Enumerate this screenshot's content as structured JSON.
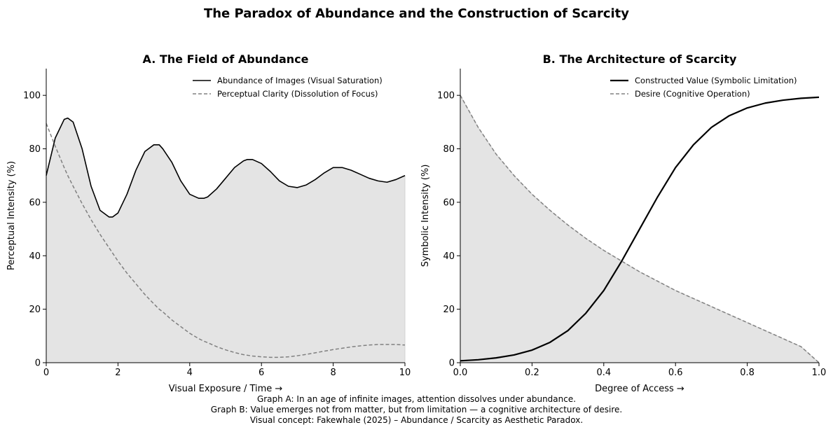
{
  "figure_title": "The Paradox of Abundance and the Construction of Scarcity",
  "caption_lines": [
    "Graph A: In an age of infinite images, attention dissolves under abundance.",
    "Graph B: Value emerges not from matter, but from limitation — a cognitive architecture of desire.",
    "Visual concept: Fakewhale (2025) – Abundance / Scarcity as Aesthetic Paradox."
  ],
  "colors": {
    "primary_line": "#000000",
    "secondary_line": "#808080",
    "fill": "#e4e4e4",
    "axis": "#000000"
  },
  "chart_data": [
    {
      "type": "line",
      "title": "A. The Field of Abundance",
      "xlabel": "Visual Exposure / Time →",
      "ylabel": "Perceptual Intensity (%)",
      "xlim": [
        0,
        10
      ],
      "ylim": [
        0,
        110
      ],
      "xticks": [
        0,
        2,
        4,
        6,
        8,
        10
      ],
      "yticks": [
        0,
        20,
        40,
        60,
        80,
        100
      ],
      "legend_position": "top-right",
      "fill_under": "Abundance of Images (Visual Saturation)",
      "x": [
        0,
        0.25,
        0.5,
        0.6,
        0.75,
        1.0,
        1.25,
        1.5,
        1.75,
        1.85,
        2.0,
        2.25,
        2.5,
        2.75,
        3.0,
        3.15,
        3.25,
        3.5,
        3.75,
        4.0,
        4.25,
        4.4,
        4.5,
        4.75,
        5.0,
        5.25,
        5.5,
        5.6,
        5.75,
        6.0,
        6.25,
        6.5,
        6.75,
        7.0,
        7.25,
        7.5,
        7.75,
        8.0,
        8.25,
        8.5,
        8.75,
        9.0,
        9.25,
        9.5,
        9.75,
        10.0
      ],
      "series": [
        {
          "name": "Abundance of Images (Visual Saturation)",
          "style": "solid",
          "values": [
            70,
            84,
            91,
            91.5,
            90,
            80,
            66,
            57,
            54.5,
            54.5,
            56,
            63,
            72,
            79,
            81.5,
            81.5,
            80,
            75,
            68,
            63,
            61.5,
            61.5,
            62,
            65,
            69,
            73,
            75.5,
            76,
            76,
            74.5,
            71.5,
            68,
            66,
            65.5,
            66.5,
            68.5,
            71,
            73,
            73,
            72,
            70.5,
            69,
            68,
            67.5,
            68.5,
            70
          ]
        },
        {
          "name": "Perceptual Clarity (Dissolution of Focus)",
          "style": "dashed",
          "values": [
            89.5,
            81,
            73,
            70,
            66,
            59.5,
            53.5,
            48,
            43,
            41,
            38,
            33.5,
            29.5,
            25.5,
            22,
            20,
            19,
            16,
            13.5,
            11,
            9,
            8,
            7.5,
            6,
            4.8,
            3.8,
            3.0,
            2.8,
            2.5,
            2.2,
            2.0,
            2.0,
            2.2,
            2.6,
            3.1,
            3.7,
            4.3,
            4.9,
            5.4,
            5.9,
            6.3,
            6.6,
            6.8,
            6.8,
            6.8,
            6.6
          ]
        }
      ]
    },
    {
      "type": "line",
      "title": "B. The Architecture of Scarcity",
      "xlabel": "Degree of Access →",
      "ylabel": "Symbolic Intensity (%)",
      "xlim": [
        0,
        1
      ],
      "ylim": [
        0,
        110
      ],
      "xticks": [
        0.0,
        0.2,
        0.4,
        0.6,
        0.8,
        1.0
      ],
      "yticks": [
        0,
        20,
        40,
        60,
        80,
        100
      ],
      "legend_position": "top-right",
      "fill_under": "Desire (Cognitive Operation)",
      "x": [
        0,
        0.05,
        0.1,
        0.15,
        0.2,
        0.25,
        0.3,
        0.35,
        0.4,
        0.45,
        0.5,
        0.55,
        0.6,
        0.65,
        0.7,
        0.75,
        0.8,
        0.85,
        0.9,
        0.95,
        1.0
      ],
      "series": [
        {
          "name": "Constructed Value (Symbolic Limitation)",
          "style": "solid",
          "values": [
            0.7,
            1.1,
            1.8,
            2.9,
            4.7,
            7.6,
            12,
            18.5,
            27,
            38,
            50,
            62,
            73,
            81.5,
            88,
            92.4,
            95.3,
            97.1,
            98.2,
            98.9,
            99.3
          ]
        },
        {
          "name": "Desire (Cognitive Operation)",
          "style": "dashed",
          "values": [
            100,
            88,
            78,
            70,
            63,
            57,
            51.5,
            46.5,
            42,
            38,
            34,
            30.5,
            27,
            24,
            21,
            18,
            15,
            12,
            9,
            6,
            0
          ]
        }
      ]
    }
  ]
}
